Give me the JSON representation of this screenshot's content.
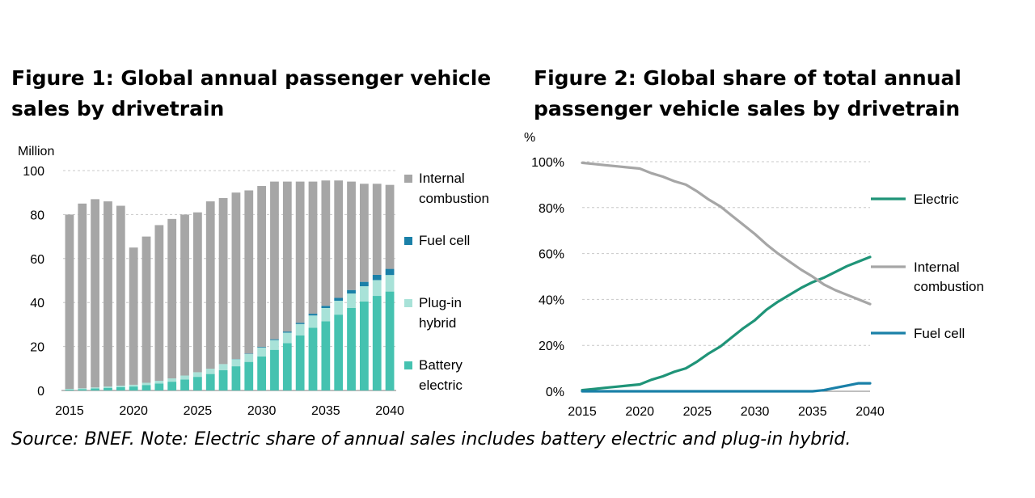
{
  "figure1": {
    "title": "Figure 1: Global annual passenger vehicle sales by drivetrain",
    "unit_label": "Million"
  },
  "figure2": {
    "title": "Figure 2: Global share of total annual passenger vehicle sales by drivetrain",
    "unit_label": "%"
  },
  "source_note": "Source: BNEF. Note: Electric share of annual sales includes battery electric and plug-in hybrid.",
  "colors": {
    "internal_combustion": "#a6a6a6",
    "fuel_cell": "#1a80a8",
    "plug_in_hybrid": "#a8e2d8",
    "battery_electric": "#45c2b0",
    "electric_line": "#1f9478",
    "ice_line": "#a6a6a6",
    "fuel_cell_line": "#1a80a8",
    "grid": "#c8c8c8"
  },
  "chart_data": [
    {
      "type": "bar",
      "stacked": true,
      "title": "Figure 1: Global annual passenger vehicle sales by drivetrain",
      "ylabel": "Million",
      "ylim": [
        0,
        100
      ],
      "yticks": [
        0,
        20,
        40,
        60,
        80,
        100
      ],
      "xtick_labels": [
        "2015",
        "2020",
        "2025",
        "2030",
        "2035",
        "2040"
      ],
      "categories": [
        2015,
        2016,
        2017,
        2018,
        2019,
        2020,
        2021,
        2022,
        2023,
        2024,
        2025,
        2026,
        2027,
        2028,
        2029,
        2030,
        2031,
        2032,
        2033,
        2034,
        2035,
        2036,
        2037,
        2038,
        2039,
        2040
      ],
      "legend_position": "right",
      "series": [
        {
          "name": "Battery electric",
          "values": [
            0.4,
            0.6,
            0.9,
            1.2,
            1.5,
            1.8,
            2.5,
            3.2,
            4.0,
            5.0,
            6.2,
            7.5,
            9.2,
            11.0,
            13.0,
            15.5,
            18.5,
            21.5,
            25.0,
            28.5,
            31.5,
            34.5,
            37.5,
            40.5,
            43.0,
            45.0
          ]
        },
        {
          "name": "Plug-in hybrid",
          "values": [
            0.3,
            0.4,
            0.5,
            0.6,
            0.7,
            0.8,
            1.0,
            1.2,
            1.5,
            1.8,
            2.1,
            2.4,
            2.8,
            3.2,
            3.6,
            4.0,
            4.4,
            4.8,
            5.2,
            5.6,
            6.0,
            6.3,
            6.6,
            6.9,
            7.2,
            7.5
          ]
        },
        {
          "name": "Fuel cell",
          "values": [
            0,
            0,
            0,
            0,
            0,
            0,
            0,
            0,
            0,
            0,
            0,
            0,
            0,
            0.1,
            0.2,
            0.3,
            0.4,
            0.5,
            0.6,
            0.8,
            1.0,
            1.3,
            1.6,
            2.0,
            2.4,
            2.8
          ]
        },
        {
          "name": "Internal combustion",
          "values": [
            79.3,
            84.0,
            85.6,
            84.2,
            81.8,
            62.4,
            66.5,
            70.8,
            72.5,
            73.2,
            72.7,
            76.1,
            75.5,
            75.7,
            74.2,
            73.2,
            71.7,
            68.2,
            64.2,
            60.1,
            57.0,
            53.4,
            49.3,
            44.6,
            41.4,
            38.2
          ]
        }
      ]
    },
    {
      "type": "line",
      "title": "Figure 2: Global share of total annual passenger vehicle sales by drivetrain",
      "ylabel": "%",
      "ylim": [
        0,
        100
      ],
      "yticks": [
        "0%",
        "20%",
        "40%",
        "60%",
        "80%",
        "100%"
      ],
      "xtick_labels": [
        "2015",
        "2020",
        "2025",
        "2030",
        "2035",
        "2040"
      ],
      "x": [
        2015,
        2016,
        2017,
        2018,
        2019,
        2020,
        2021,
        2022,
        2023,
        2024,
        2025,
        2026,
        2027,
        2028,
        2029,
        2030,
        2031,
        2032,
        2033,
        2034,
        2035,
        2036,
        2037,
        2038,
        2039,
        2040
      ],
      "legend_position": "right",
      "series": [
        {
          "name": "Electric",
          "values": [
            0.5,
            1,
            1.5,
            2,
            2.5,
            3,
            5,
            6.5,
            8.5,
            10,
            13,
            16.5,
            19.5,
            23.5,
            27.5,
            31,
            35.5,
            39,
            42,
            45,
            47.5,
            49.5,
            52,
            54.5,
            56.5,
            58.5
          ]
        },
        {
          "name": "Internal combustion",
          "values": [
            99.5,
            99,
            98.5,
            98,
            97.5,
            97,
            95,
            93.5,
            91.5,
            90,
            87,
            83.5,
            80.5,
            76.5,
            72.5,
            68.5,
            64,
            60,
            56.5,
            53,
            50,
            46.5,
            44,
            42,
            40,
            38
          ]
        },
        {
          "name": "Fuel cell",
          "values": [
            0,
            0,
            0,
            0,
            0,
            0,
            0,
            0,
            0,
            0,
            0,
            0,
            0,
            0,
            0,
            0,
            0,
            0,
            0,
            0,
            0,
            0.5,
            1.5,
            2.5,
            3.5,
            3.5
          ]
        }
      ]
    }
  ]
}
